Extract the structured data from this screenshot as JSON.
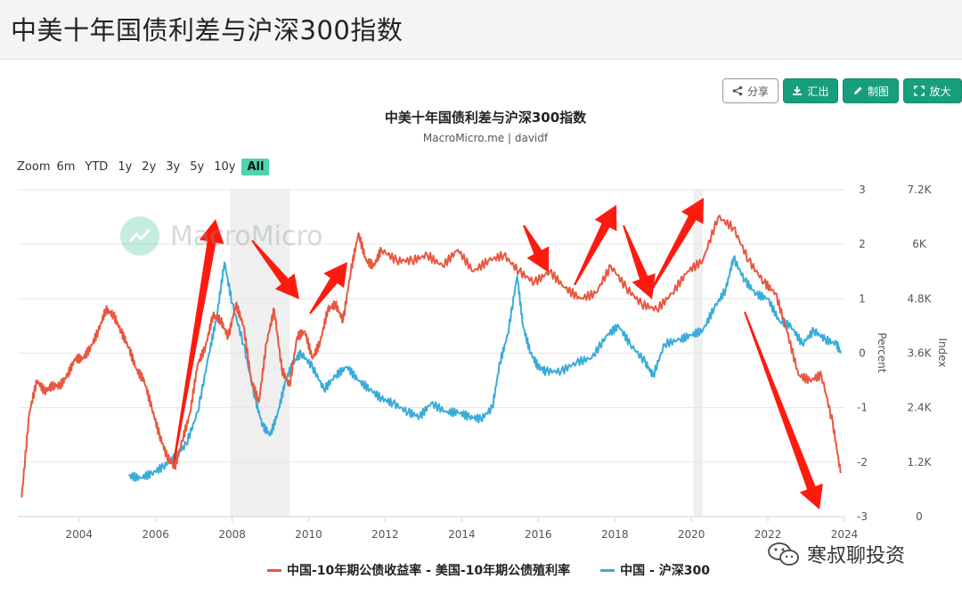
{
  "page": {
    "title": "中美十年国债利差与沪深300指数"
  },
  "toolbar": {
    "share_label": "分享",
    "export_label": "汇出",
    "draw_label": "制图",
    "zoom_label": "放大"
  },
  "zoom": {
    "label": "Zoom",
    "options": [
      "6m",
      "YTD",
      "1y",
      "2y",
      "3y",
      "5y",
      "10y",
      "All"
    ],
    "active": "All"
  },
  "watermark": {
    "text": "MacroMicro",
    "account": "寒叔聊投资"
  },
  "colors": {
    "spread": "#e8573f",
    "csi300": "#3aabd9",
    "shade": "#efefef",
    "arrow": "#ff1a0f"
  },
  "chart_data": {
    "type": "line",
    "title": "中美十年国债利差与沪深300指数",
    "subtitle": "MacroMicro.me | davidf",
    "x_ticks": [
      "2004",
      "2006",
      "2008",
      "2010",
      "2012",
      "2014",
      "2016",
      "2018",
      "2020",
      "2022",
      "2024"
    ],
    "xlim": [
      2002.4,
      2024.0
    ],
    "left_axis": {
      "label": "Percent",
      "ticks": [
        "3",
        "2",
        "1",
        "0",
        "-1",
        "-2",
        "-3"
      ],
      "range": [
        -3,
        3
      ]
    },
    "right_axis": {
      "label": "Index",
      "ticks": [
        "7.2K",
        "6K",
        "4.8K",
        "3.6K",
        "2.4K",
        "1.2K",
        "0"
      ],
      "range": [
        0,
        7200
      ]
    },
    "shaded_periods": [
      [
        2007.95,
        2009.5
      ],
      [
        2020.05,
        2020.3
      ]
    ],
    "series": [
      {
        "name": "中国-10年期公债收益率 - 美国-10年期公债殖利率",
        "axis": "left",
        "x": [
          2002.5,
          2002.7,
          2002.9,
          2003.1,
          2003.3,
          2003.5,
          2003.7,
          2003.9,
          2004.1,
          2004.3,
          2004.5,
          2004.7,
          2004.9,
          2005.1,
          2005.3,
          2005.5,
          2005.7,
          2005.9,
          2006.1,
          2006.3,
          2006.5,
          2006.7,
          2006.9,
          2007.1,
          2007.3,
          2007.5,
          2007.7,
          2007.9,
          2008.1,
          2008.3,
          2008.5,
          2008.7,
          2008.9,
          2009.1,
          2009.3,
          2009.5,
          2009.7,
          2009.9,
          2010.1,
          2010.3,
          2010.5,
          2010.7,
          2010.9,
          2011.1,
          2011.3,
          2011.5,
          2011.7,
          2011.9,
          2012.3,
          2012.7,
          2013.1,
          2013.5,
          2013.9,
          2014.3,
          2014.7,
          2015.1,
          2015.5,
          2015.9,
          2016.3,
          2016.7,
          2017.1,
          2017.5,
          2017.9,
          2018.3,
          2018.7,
          2019.1,
          2019.5,
          2019.9,
          2020.3,
          2020.7,
          2021.1,
          2021.5,
          2021.9,
          2022.2,
          2022.5,
          2022.8,
          2023.1,
          2023.4,
          2023.7,
          2023.9
        ],
        "values": [
          -2.65,
          -1.1,
          -0.5,
          -0.7,
          -0.6,
          -0.6,
          -0.4,
          -0.1,
          -0.1,
          0.1,
          0.4,
          0.8,
          0.7,
          0.4,
          0.1,
          -0.3,
          -0.5,
          -1.0,
          -1.5,
          -1.9,
          -2.1,
          -1.6,
          -1.1,
          -0.2,
          0.1,
          0.7,
          0.6,
          0.3,
          0.9,
          0.5,
          -0.5,
          -0.9,
          0.2,
          0.8,
          -0.3,
          -0.6,
          0.3,
          0.4,
          -0.1,
          0.2,
          0.8,
          0.9,
          0.6,
          1.5,
          2.2,
          1.7,
          1.6,
          1.9,
          1.7,
          1.7,
          1.8,
          1.6,
          1.9,
          1.5,
          1.7,
          1.8,
          1.5,
          1.3,
          1.5,
          1.2,
          1.0,
          1.1,
          1.6,
          1.2,
          0.9,
          0.8,
          1.1,
          1.5,
          1.7,
          2.5,
          2.3,
          1.7,
          1.3,
          1.1,
          0.4,
          -0.4,
          -0.5,
          -0.4,
          -1.3,
          -2.2
        ]
      },
      {
        "name": "中国 - 沪深300",
        "axis": "right",
        "x": [
          2005.3,
          2005.6,
          2005.9,
          2006.2,
          2006.5,
          2006.8,
          2007.1,
          2007.4,
          2007.6,
          2007.8,
          2008.0,
          2008.3,
          2008.6,
          2008.8,
          2009.0,
          2009.2,
          2009.4,
          2009.6,
          2009.8,
          2010.1,
          2010.4,
          2010.7,
          2011.0,
          2011.3,
          2011.6,
          2011.9,
          2012.2,
          2012.6,
          2012.9,
          2013.2,
          2013.6,
          2013.9,
          2014.2,
          2014.5,
          2014.8,
          2015.0,
          2015.2,
          2015.45,
          2015.6,
          2015.8,
          2016.0,
          2016.2,
          2016.6,
          2017.0,
          2017.4,
          2017.8,
          2018.1,
          2018.4,
          2018.8,
          2019.0,
          2019.3,
          2019.7,
          2020.0,
          2020.3,
          2020.6,
          2020.9,
          2021.1,
          2021.4,
          2021.7,
          2022.0,
          2022.3,
          2022.6,
          2022.9,
          2023.2,
          2023.5,
          2023.8,
          2023.9
        ],
        "values": [
          900,
          850,
          950,
          1100,
          1300,
          1600,
          2300,
          3600,
          4400,
          5600,
          4700,
          3800,
          2600,
          2000,
          1800,
          2300,
          3000,
          3400,
          3600,
          3300,
          2800,
          3100,
          3300,
          3000,
          2800,
          2600,
          2500,
          2300,
          2200,
          2500,
          2300,
          2300,
          2200,
          2150,
          2400,
          3400,
          4000,
          5300,
          4200,
          3600,
          3300,
          3200,
          3200,
          3400,
          3500,
          4000,
          4200,
          3800,
          3400,
          3100,
          3800,
          3900,
          4000,
          4100,
          4600,
          5000,
          5700,
          5200,
          4900,
          4800,
          4300,
          4200,
          3800,
          4100,
          3900,
          3800,
          3600
        ]
      }
    ],
    "legend_position": "bottom-center",
    "grid": true
  }
}
